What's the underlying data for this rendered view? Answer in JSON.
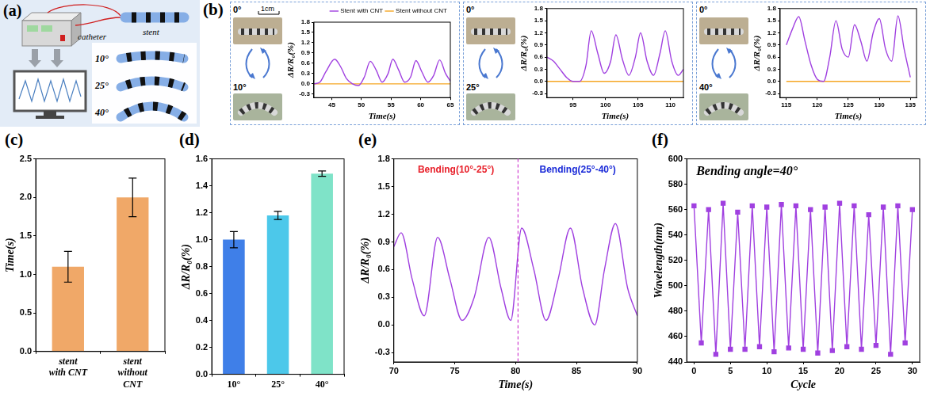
{
  "panel_a": {
    "label": "(a)",
    "catheter": "catheter",
    "stent": "stent",
    "angles": [
      "10°",
      "25°",
      "40°"
    ]
  },
  "chart_data": [
    {
      "panel": "(b)",
      "type": "line",
      "photo_labels": [
        "0°",
        "10°"
      ],
      "scale_label": "1cm",
      "x_label": "Time(s)",
      "y_label": "ΔR/R₀(%)",
      "x": [
        42,
        43,
        44,
        45.5,
        46.5,
        47.5,
        48.5,
        49.5,
        50.5,
        51.5,
        52.5,
        53.5,
        54.5,
        55.3,
        56.3,
        57.3,
        58.3,
        59.2,
        60.2,
        61.2,
        62.2,
        63.2,
        64.2,
        65
      ],
      "series": [
        {
          "name": "Stent with CNT",
          "color": "#a040e0",
          "values": [
            0.0,
            0.05,
            0.35,
            0.72,
            0.5,
            0.15,
            0.0,
            -0.05,
            0.2,
            0.66,
            0.4,
            0.05,
            0.3,
            0.72,
            0.4,
            0.05,
            0.2,
            0.68,
            0.35,
            0.05,
            0.25,
            0.7,
            0.3,
            0.08
          ]
        },
        {
          "name": "Stent without CNT",
          "color": "#f5a623",
          "values": [
            0,
            0,
            0,
            0,
            0,
            0,
            0,
            0,
            0,
            0,
            0,
            0,
            0,
            0,
            0,
            0,
            0,
            0,
            0,
            0,
            0,
            0,
            0,
            0
          ]
        }
      ],
      "xlim": [
        42,
        65
      ],
      "xticks": [
        45,
        50,
        55,
        60,
        65
      ],
      "ylim": [
        -0.4,
        1.8
      ],
      "yticks": [
        -0.3,
        {
          "value": 0,
          "label": "0.0"
        },
        0.3,
        0.6,
        0.9,
        1.2,
        1.5,
        1.8
      ],
      "grid": false,
      "legend": "upper right"
    },
    {
      "type": "line",
      "photo_labels": [
        "0°",
        "25°"
      ],
      "x_label": "Time(s)",
      "y_label": "ΔR/R₀(%)",
      "x": [
        91,
        92,
        93,
        94,
        95,
        96,
        97,
        97.8,
        98.8,
        99.8,
        100.8,
        101.6,
        102.6,
        103.6,
        104.6,
        105.4,
        106.4,
        107.4,
        108.4,
        109.2,
        110.2,
        111.2,
        112
      ],
      "series": [
        {
          "color": "#a040e0",
          "values": [
            0.6,
            0.5,
            0.3,
            0.1,
            0.0,
            0.0,
            0.4,
            1.25,
            0.7,
            0.2,
            0.5,
            1.15,
            0.55,
            0.15,
            0.6,
            1.2,
            0.5,
            0.15,
            0.7,
            1.25,
            0.5,
            0.15,
            0.3
          ]
        },
        {
          "color": "#f5a623",
          "values": [
            0,
            0,
            0,
            0,
            0,
            0,
            0,
            0,
            0,
            0,
            0,
            0,
            0,
            0,
            0,
            0,
            0,
            0,
            0,
            0,
            0,
            0,
            0
          ]
        }
      ],
      "xlim": [
        91,
        112
      ],
      "xticks": [
        95,
        100,
        105,
        110
      ],
      "ylim": [
        -0.4,
        1.8
      ],
      "yticks": [
        -0.3,
        {
          "value": 0,
          "label": "0.0"
        },
        0.3,
        0.6,
        0.9,
        1.2,
        1.5,
        1.8
      ],
      "grid": false
    },
    {
      "type": "line",
      "photo_labels": [
        "0°",
        "40°"
      ],
      "x_label": "Time(s)",
      "y_label": "ΔR/R₀(%)",
      "x": [
        115,
        116,
        117,
        118,
        119,
        120,
        121,
        122,
        123,
        124,
        125,
        126,
        127,
        128,
        129,
        130,
        131,
        132,
        133,
        134,
        135
      ],
      "series": [
        {
          "color": "#a040e0",
          "values": [
            0.9,
            1.3,
            1.6,
            1.0,
            0.4,
            0.05,
            0.0,
            0.6,
            1.5,
            0.8,
            0.6,
            1.4,
            1.0,
            0.5,
            1.2,
            1.55,
            0.8,
            0.5,
            1.62,
            0.8,
            0.1
          ]
        },
        {
          "color": "#f5a623",
          "values": [
            0,
            0,
            0,
            0,
            0,
            0,
            0,
            0,
            0,
            0,
            0,
            0,
            0,
            0,
            0,
            0,
            0,
            0,
            0,
            0,
            0
          ]
        }
      ],
      "xlim": [
        114,
        136
      ],
      "xticks": [
        115,
        120,
        125,
        130,
        135
      ],
      "ylim": [
        -0.4,
        1.8
      ],
      "yticks": [
        -0.3,
        {
          "value": 0,
          "label": "0.0"
        },
        0.3,
        0.6,
        0.9,
        1.2,
        1.5,
        1.8
      ],
      "grid": false
    },
    {
      "panel": "(c)",
      "type": "bar",
      "categories": [
        "stent with CNT",
        "stent without CNT"
      ],
      "values": [
        1.1,
        2.0
      ],
      "errors": [
        0.2,
        0.25
      ],
      "color": "#f0a868",
      "y_label": "Time(s)",
      "ylim": [
        0,
        2.5
      ],
      "yticks": [
        {
          "value": 0,
          "label": "0.0"
        },
        0.5,
        {
          "value": 1,
          "label": "1.0"
        },
        1.5,
        {
          "value": 2,
          "label": "2.0"
        },
        2.5
      ],
      "grid": false
    },
    {
      "panel": "(d)",
      "type": "bar",
      "categories": [
        "10°",
        "25°",
        "40°"
      ],
      "values": [
        1.0,
        1.18,
        1.49
      ],
      "errors": [
        0.06,
        0.03,
        0.02
      ],
      "colors": [
        "#3f7fe8",
        "#4cc8ea",
        "#7fe3c8"
      ],
      "y_label": "ΔR/R₀(%)",
      "ylim": [
        0,
        1.6
      ],
      "yticks": [
        {
          "value": 0,
          "label": "0.0"
        },
        0.2,
        0.4,
        0.6,
        0.8,
        {
          "value": 1,
          "label": "1.0"
        },
        1.2,
        1.4,
        1.6
      ],
      "grid": false
    },
    {
      "panel": "(e)",
      "type": "line",
      "x_label": "Time(s)",
      "y_label": "ΔR/R₀(%)",
      "x": [
        70,
        70.6,
        71.5,
        72.5,
        73.6,
        74.6,
        75.6,
        76.6,
        77.8,
        78.8,
        79.6,
        80.5,
        81.5,
        82.5,
        83.5,
        84.5,
        85.5,
        86.5,
        87.3,
        88.2,
        89.2,
        90
      ],
      "values": [
        0.85,
        1.0,
        0.5,
        0.1,
        0.95,
        0.5,
        0.05,
        0.3,
        0.95,
        0.4,
        0.05,
        1.05,
        0.6,
        0.05,
        0.5,
        1.05,
        0.4,
        0.0,
        0.6,
        1.1,
        0.4,
        0.1
      ],
      "color": "#a040e0",
      "annotations": [
        {
          "text": "Bending(10°-25°)",
          "color": "#e8202a"
        },
        {
          "text": "Bending(25°-40°)",
          "color": "#1a2ad8"
        }
      ],
      "divider": 80.2,
      "xlim": [
        70,
        90
      ],
      "xticks": [
        70,
        75,
        80,
        85,
        90
      ],
      "ylim": [
        -0.4,
        1.8
      ],
      "yticks": [
        -0.3,
        {
          "value": 0,
          "label": "0.0"
        },
        0.3,
        0.6,
        0.9,
        1.2,
        1.5,
        1.8
      ],
      "grid": false
    },
    {
      "panel": "(f)",
      "type": "line",
      "title": "Bending angle=40°",
      "x_label": "Cycle",
      "y_label": "Wavelength(nm)",
      "x": [
        0,
        1,
        2,
        3,
        4,
        5,
        6,
        7,
        8,
        9,
        10,
        11,
        12,
        13,
        14,
        15,
        16,
        17,
        18,
        19,
        20,
        21,
        22,
        23,
        24,
        25,
        26,
        27,
        28,
        29,
        30
      ],
      "values": [
        563,
        455,
        560,
        446,
        565,
        450,
        558,
        450,
        563,
        452,
        562,
        448,
        564,
        451,
        563,
        450,
        560,
        447,
        562,
        449,
        565,
        452,
        563,
        450,
        556,
        453,
        562,
        446,
        563,
        455,
        560
      ],
      "color": "#a040e0",
      "marker": "square",
      "xlim": [
        -1,
        31
      ],
      "xticks": [
        0,
        5,
        10,
        15,
        20,
        25,
        30
      ],
      "ylim": [
        440,
        600
      ],
      "yticks": [
        440,
        460,
        480,
        500,
        520,
        540,
        560,
        580,
        600
      ],
      "grid": false
    }
  ]
}
